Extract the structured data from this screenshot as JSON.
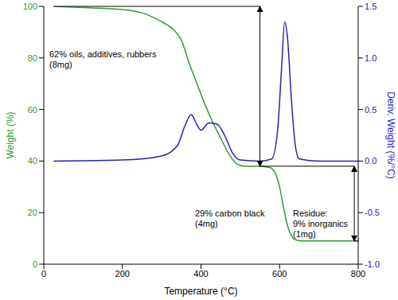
{
  "chart_data": {
    "type": "line",
    "xlabel": "Temperature (°C)",
    "ylabel": "Weight (%)",
    "y2label": "Deriv. Weight (%/°C)",
    "grid": false,
    "xlim": [
      0,
      800
    ],
    "xticks": [
      0,
      200,
      400,
      600,
      800
    ],
    "ylim": [
      0,
      100
    ],
    "yticks": [
      0,
      20,
      40,
      60,
      80,
      100
    ],
    "y2lim": [
      -1,
      1.5
    ],
    "y2ticks": [
      {
        "value": -1,
        "label": "-1.0"
      },
      -0.5,
      {
        "value": 0,
        "label": "0.0"
      },
      0.5,
      {
        "value": 1,
        "label": "1.0"
      },
      1.5
    ],
    "series": [
      {
        "color": "#339933",
        "axis": "y",
        "x": [
          25,
          100,
          200,
          250,
          300,
          330,
          350,
          370,
          390,
          410,
          430,
          450,
          470,
          490,
          510,
          550,
          575,
          590,
          600,
          610,
          620,
          630,
          640,
          660,
          700,
          800
        ],
        "values": [
          100,
          99.5,
          98.8,
          97.5,
          94,
          91,
          87,
          78,
          70,
          62,
          55,
          49,
          43,
          39,
          38,
          38,
          37.5,
          35,
          30,
          22,
          15,
          11,
          9.5,
          9,
          9,
          9
        ]
      },
      {
        "color": "#2222bb",
        "axis": "y2",
        "x": [
          25,
          200,
          300,
          340,
          360,
          375,
          390,
          400,
          420,
          440,
          460,
          480,
          500,
          550,
          580,
          595,
          605,
          613,
          620,
          630,
          640,
          650,
          700,
          800
        ],
        "values": [
          0,
          0.01,
          0.05,
          0.15,
          0.35,
          0.45,
          0.35,
          0.3,
          0.37,
          0.36,
          0.25,
          0.08,
          0.01,
          0,
          0.02,
          0.3,
          0.9,
          1.35,
          1.2,
          0.6,
          0.15,
          0.02,
          0,
          0
        ]
      }
    ],
    "arrows": [
      {
        "x": 550,
        "y_from": 100,
        "y_to": 38
      },
      {
        "x": 790,
        "y_from": 38,
        "y_to": 9
      }
    ],
    "annotations": [
      {
        "lines": [
          "62% oils, additives, rubbers",
          "(8mg)"
        ]
      },
      {
        "lines": [
          "29% carbon black",
          "(4mg)"
        ]
      },
      {
        "lines": [
          "Residue:",
          "9% inorganics",
          "(1mg)"
        ]
      }
    ]
  }
}
